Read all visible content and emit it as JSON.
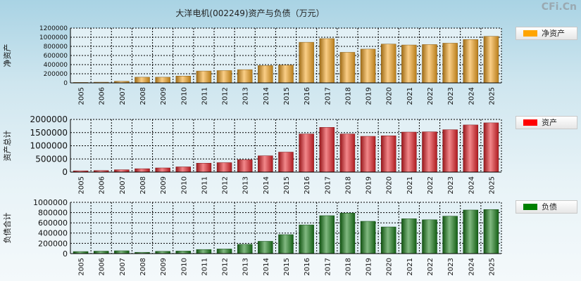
{
  "page": {
    "title": "大洋电机(002249)资产与负债（万元）",
    "brand": "CFi.Cn"
  },
  "chart_data": [
    {
      "type": "bar",
      "ylabel": "净资产",
      "legend": "净资产",
      "color": "#f5a623",
      "categories": [
        "2005",
        "2006",
        "2007",
        "2008",
        "2009",
        "2010",
        "2011",
        "2012",
        "2013",
        "2014",
        "2015",
        "2016",
        "2017",
        "2018",
        "2019",
        "2020",
        "2021",
        "2022",
        "2023",
        "2024",
        "2025"
      ],
      "values": [
        10000,
        15000,
        35000,
        125000,
        125000,
        150000,
        260000,
        270000,
        290000,
        380000,
        390000,
        890000,
        970000,
        670000,
        740000,
        850000,
        830000,
        840000,
        870000,
        950000,
        1020000
      ],
      "ylim": [
        0,
        1200000
      ],
      "yticks": [
        "1200000",
        "1000000",
        "800000",
        "600000",
        "400000",
        "200000",
        "0"
      ]
    },
    {
      "type": "bar",
      "ylabel": "资产总计",
      "legend": "资产",
      "color": "#e8242a",
      "categories": [
        "2005",
        "2006",
        "2007",
        "2008",
        "2009",
        "2010",
        "2011",
        "2012",
        "2013",
        "2014",
        "2015",
        "2016",
        "2017",
        "2018",
        "2019",
        "2020",
        "2021",
        "2022",
        "2023",
        "2024",
        "2025"
      ],
      "values": [
        50000,
        60000,
        90000,
        130000,
        160000,
        200000,
        340000,
        360000,
        470000,
        620000,
        760000,
        1450000,
        1700000,
        1450000,
        1360000,
        1380000,
        1520000,
        1530000,
        1610000,
        1790000,
        1870000
      ],
      "ylim": [
        0,
        2000000
      ],
      "yticks": [
        "2000000",
        "1500000",
        "1000000",
        "500000",
        "0"
      ]
    },
    {
      "type": "bar",
      "ylabel": "负债合计",
      "legend": "负债",
      "color": "#1a7f1a",
      "categories": [
        "2005",
        "2006",
        "2007",
        "2008",
        "2009",
        "2010",
        "2011",
        "2012",
        "2013",
        "2014",
        "2015",
        "2016",
        "2017",
        "2018",
        "2019",
        "2020",
        "2021",
        "2022",
        "2023",
        "2024",
        "2025"
      ],
      "values": [
        40000,
        48000,
        55000,
        25000,
        45000,
        50000,
        80000,
        90000,
        180000,
        240000,
        370000,
        560000,
        740000,
        790000,
        630000,
        520000,
        680000,
        660000,
        730000,
        850000,
        860000
      ],
      "ylim": [
        0,
        1000000
      ],
      "yticks": [
        "1000000",
        "800000",
        "600000",
        "400000",
        "200000",
        "0"
      ]
    }
  ]
}
